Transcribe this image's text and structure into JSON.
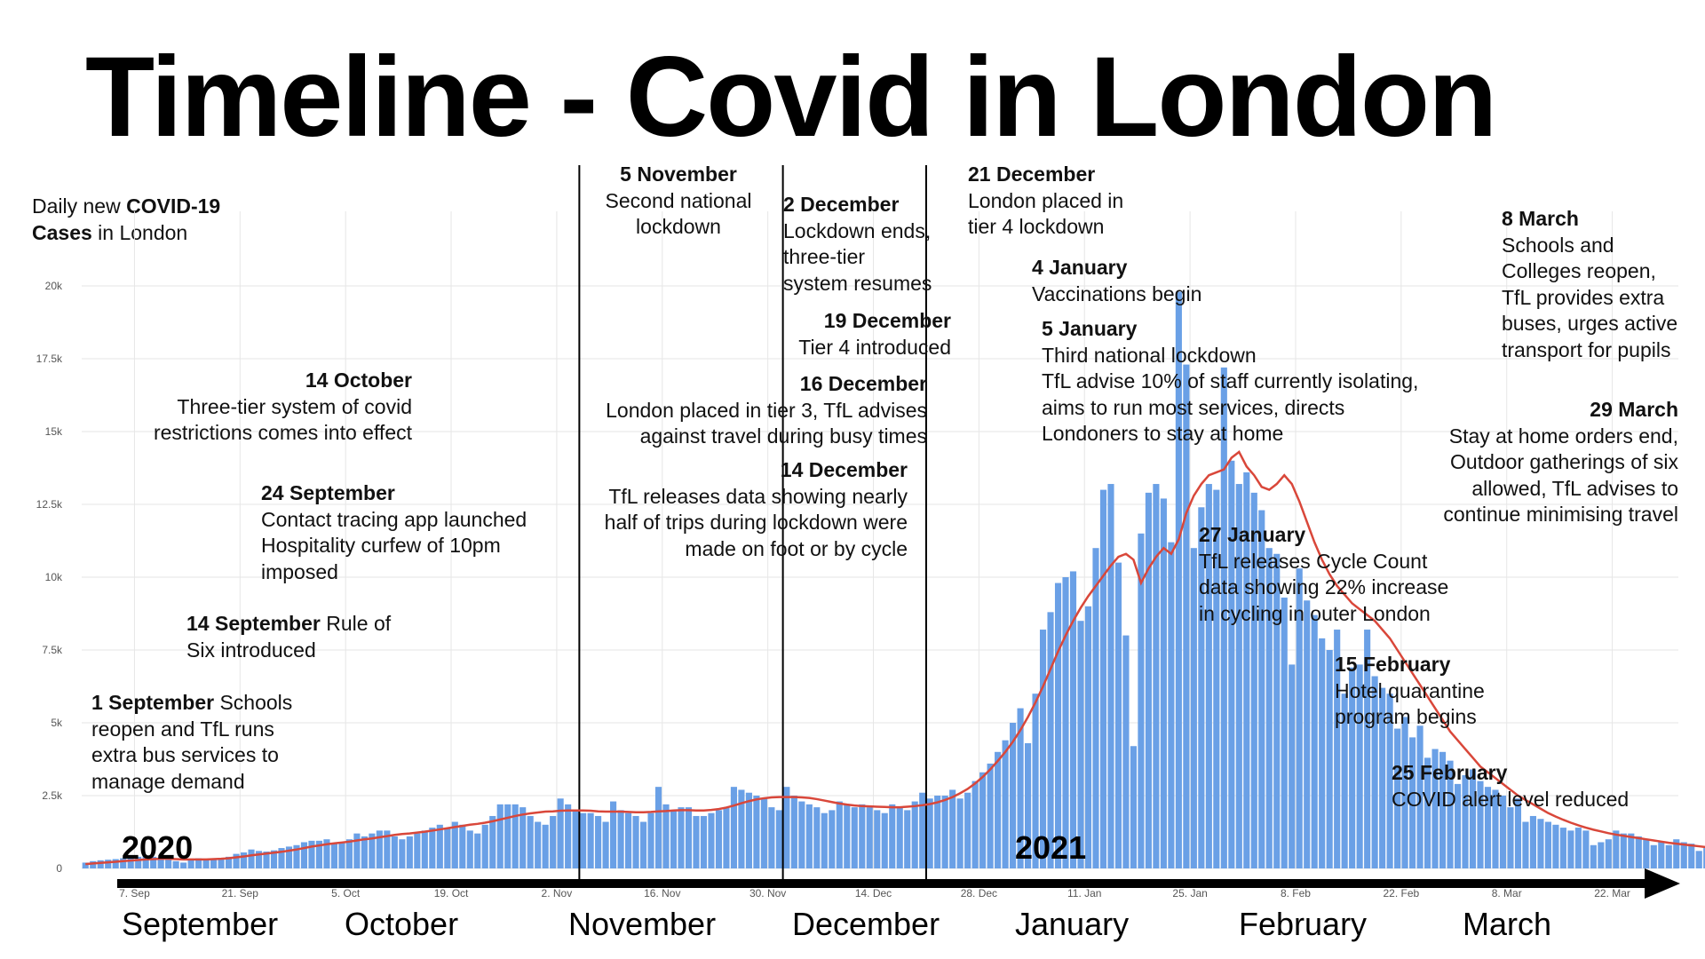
{
  "title": "Timeline - Covid in London",
  "y_title": {
    "prefix": "Daily new ",
    "bold1": "COVID-19",
    "bold2": "Cases",
    "suffix": " in London"
  },
  "years": [
    "2020",
    "2021"
  ],
  "months": [
    "September",
    "October",
    "November",
    "December",
    "January",
    "February",
    "March"
  ],
  "colors": {
    "bars": "#6aa0e6",
    "line": "#d9473a",
    "grid": "#e6e6e6",
    "text": "#111111"
  },
  "annotations": [
    {
      "id": "sep1",
      "date": "1 September",
      "lines": [
        "Schools",
        "reopen and TfL runs",
        "extra bus services to",
        "manage demand"
      ]
    },
    {
      "id": "sep14",
      "date": "14 September",
      "lines": [
        "Rule of",
        "Six introduced"
      ]
    },
    {
      "id": "sep24",
      "date": "24 September",
      "lines": [
        "Contact tracing app launched",
        "Hospitality curfew of 10pm",
        "imposed"
      ]
    },
    {
      "id": "oct14",
      "date": "14 October",
      "lines": [
        "Three-tier system of covid",
        "restrictions comes into effect"
      ]
    },
    {
      "id": "nov5",
      "date": "5 November",
      "lines": [
        "Second national",
        "lockdown"
      ]
    },
    {
      "id": "dec2",
      "date": "2 December",
      "lines": [
        "Lockdown ends,",
        "three-tier",
        "system resumes"
      ]
    },
    {
      "id": "dec19",
      "date": "19 December",
      "lines": [
        "Tier 4 introduced"
      ]
    },
    {
      "id": "dec16",
      "date": "16 December",
      "lines": [
        "London placed in tier 3, TfL advises",
        "against travel during busy times"
      ]
    },
    {
      "id": "dec14",
      "date": "14 December",
      "lines": [
        "TfL releases data showing nearly",
        "half of trips during lockdown were",
        "made on foot or by cycle"
      ]
    },
    {
      "id": "dec21",
      "date": "21 December",
      "lines": [
        "London placed in",
        "tier 4 lockdown"
      ]
    },
    {
      "id": "jan4",
      "date": "4 January",
      "lines": [
        "Vaccinations begin"
      ]
    },
    {
      "id": "jan5",
      "date": "5 January",
      "lines": [
        "Third national lockdown",
        "TfL advise 10% of staff currently isolating,",
        "aims to run most services, directs",
        "Londoners to stay at home"
      ]
    },
    {
      "id": "jan27",
      "date": "27 January",
      "lines": [
        "TfL releases Cycle Count",
        "data showing 22% increase",
        "in cycling in outer London"
      ]
    },
    {
      "id": "feb15",
      "date": "15 February",
      "lines": [
        "Hotel quarantine",
        "program begins"
      ]
    },
    {
      "id": "feb25",
      "date": "25 February",
      "lines": [
        "COVID alert level reduced"
      ]
    },
    {
      "id": "mar8",
      "date": "8 March",
      "lines": [
        "Schools and",
        "Colleges reopen,",
        "TfL provides extra",
        "buses, urges active",
        "transport for pupils"
      ]
    },
    {
      "id": "mar29",
      "date": "29 March",
      "lines": [
        "Stay at home orders end,",
        "Outdoor gatherings of six",
        "allowed, TfL advises to",
        "continue minimising travel"
      ]
    }
  ],
  "chart_data": {
    "type": "bar",
    "x_start": "2020-08-31",
    "x_end": "2021-03-31",
    "ylim": [
      0,
      22000
    ],
    "y_ticks": [
      0,
      2500,
      5000,
      7500,
      10000,
      12500,
      15000,
      17500,
      20000
    ],
    "y_tick_labels": [
      "0",
      "2.5k",
      "5k",
      "7.5k",
      "10k",
      "12.5k",
      "15k",
      "17.5k",
      "20k"
    ],
    "x_tick_labels": [
      "7. Sep",
      "21. Sep",
      "5. Oct",
      "19. Oct",
      "2. Nov",
      "16. Nov",
      "30. Nov",
      "14. Dec",
      "28. Dec",
      "11. Jan",
      "25. Jan",
      "8. Feb",
      "22. Feb",
      "8. Mar",
      "22. Mar"
    ],
    "x_tick_dates": [
      "2020-09-07",
      "2020-09-21",
      "2020-10-05",
      "2020-10-19",
      "2020-11-02",
      "2020-11-16",
      "2020-11-30",
      "2020-12-14",
      "2020-12-28",
      "2021-01-11",
      "2021-01-25",
      "2021-02-08",
      "2021-02-22",
      "2021-03-08",
      "2021-03-22"
    ],
    "event_lines": [
      "2020-11-05",
      "2020-12-02",
      "2020-12-21"
    ],
    "grid": true,
    "series": [
      {
        "type": "bar",
        "values": [
          200,
          250,
          280,
          300,
          320,
          350,
          380,
          400,
          420,
          400,
          380,
          300,
          250,
          200,
          300,
          350,
          320,
          300,
          350,
          400,
          500,
          550,
          650,
          600,
          580,
          620,
          700,
          750,
          800,
          900,
          950,
          950,
          1000,
          850,
          900,
          1000,
          1200,
          1100,
          1200,
          1300,
          1300,
          1100,
          1000,
          1100,
          1200,
          1300,
          1400,
          1500,
          1400,
          1600,
          1500,
          1300,
          1200,
          1500,
          1800,
          2200,
          2200,
          2200,
          2100,
          1800,
          1600,
          1500,
          1800,
          2400,
          2200,
          2000,
          1900,
          1900,
          1800,
          1600,
          2300,
          2000,
          1900,
          1800,
          1600,
          1900,
          2800,
          2200,
          2000,
          2100,
          2100,
          1800,
          1800,
          1900,
          2000,
          2100,
          2800,
          2700,
          2600,
          2500,
          2400,
          2100,
          2000,
          2800,
          2500,
          2300,
          2200,
          2100,
          1900,
          2000,
          2300,
          2200,
          2100,
          2200,
          2100,
          2000,
          1900,
          2200,
          2100,
          2000,
          2300,
          2600,
          2400,
          2500,
          2500,
          2700,
          2400,
          2600,
          3000,
          3300,
          3600,
          4000,
          4400,
          5000,
          5500,
          4300,
          6000,
          8200,
          8800,
          9800,
          10000,
          10200,
          8500,
          9000,
          11000,
          13000,
          13200,
          10500,
          8000,
          4200,
          11500,
          12900,
          13200,
          12700,
          11200,
          19800,
          17300,
          11000,
          12400,
          13200,
          13000,
          17200,
          14000,
          13200,
          13600,
          12900,
          12300,
          11000,
          10800,
          9300,
          7000,
          10300,
          9200,
          8700,
          7900,
          7500,
          8200,
          6000,
          6900,
          7000,
          8200,
          6600,
          6200,
          6000,
          4800,
          5200,
          4500,
          4900,
          3800,
          4100,
          4000,
          3700,
          2900,
          3200,
          3400,
          3000,
          2800,
          2700,
          2500,
          2100,
          2400,
          1600,
          1800,
          1700,
          1600,
          1500,
          1400,
          1300,
          1400,
          1300,
          800,
          900,
          1000,
          1300,
          1200,
          1200,
          1100,
          1000,
          800,
          900,
          800,
          1000,
          900,
          850,
          600,
          700,
          600,
          500,
          500,
          450,
          450,
          400,
          450,
          550,
          500,
          450,
          550,
          500,
          500,
          450,
          400,
          450,
          400,
          450,
          400,
          450,
          400,
          350,
          500,
          450,
          450,
          400,
          350,
          400,
          450,
          400,
          400,
          450,
          400,
          350,
          400,
          350,
          400,
          400,
          350,
          300,
          350,
          400,
          350,
          350,
          300,
          300
        ]
      },
      {
        "type": "line",
        "values": [
          150,
          170,
          190,
          210,
          230,
          250,
          270,
          290,
          310,
          320,
          330,
          330,
          320,
          310,
          310,
          310,
          310,
          320,
          330,
          350,
          380,
          410,
          450,
          480,
          510,
          540,
          570,
          610,
          650,
          700,
          750,
          790,
          830,
          860,
          890,
          920,
          960,
          1000,
          1030,
          1070,
          1110,
          1150,
          1180,
          1200,
          1230,
          1260,
          1300,
          1340,
          1380,
          1420,
          1460,
          1500,
          1530,
          1570,
          1620,
          1680,
          1740,
          1800,
          1850,
          1890,
          1920,
          1950,
          1960,
          1980,
          1990,
          1990,
          1990,
          1980,
          1960,
          1950,
          1950,
          1950,
          1940,
          1930,
          1930,
          1940,
          1960,
          1970,
          1990,
          2000,
          2000,
          1990,
          1990,
          2010,
          2040,
          2090,
          2160,
          2240,
          2310,
          2370,
          2410,
          2440,
          2450,
          2450,
          2450,
          2440,
          2420,
          2380,
          2330,
          2280,
          2230,
          2190,
          2160,
          2140,
          2130,
          2120,
          2110,
          2100,
          2100,
          2120,
          2140,
          2170,
          2210,
          2270,
          2350,
          2450,
          2580,
          2730,
          2920,
          3140,
          3400,
          3690,
          4000,
          4350,
          4750,
          5200,
          5700,
          6250,
          6850,
          7450,
          8000,
          8500,
          8950,
          9350,
          9700,
          10050,
          10400,
          10700,
          10800,
          10600,
          9800,
          10300,
          10700,
          11000,
          10800,
          11300,
          12200,
          12800,
          13200,
          13500,
          13600,
          13700,
          14100,
          14300,
          13800,
          13500,
          13100,
          13000,
          13200,
          13500,
          13200,
          12600,
          11900,
          11200,
          10600,
          10100,
          9700,
          9400,
          9100,
          8900,
          8700,
          8500,
          8200,
          7900,
          7500,
          7100,
          6700,
          6300,
          5900,
          5500,
          5100,
          4700,
          4400,
          4100,
          3800,
          3500,
          3300,
          3100,
          2900,
          2700,
          2500,
          2350,
          2200,
          2050,
          1900,
          1780,
          1670,
          1570,
          1480,
          1400,
          1330,
          1270,
          1210,
          1160,
          1120,
          1080,
          1040,
          1000,
          960,
          920,
          880,
          850,
          820,
          790,
          760,
          730,
          700,
          670,
          640,
          610,
          580,
          560,
          540,
          520,
          500,
          490,
          480,
          470,
          460,
          460,
          460,
          460,
          460,
          460,
          460,
          460,
          460,
          460,
          460,
          460,
          450,
          450,
          450,
          450,
          450,
          450,
          450,
          450,
          450,
          440,
          440,
          440,
          440,
          440,
          430,
          430,
          430,
          420,
          410,
          400,
          390,
          380
        ]
      }
    ]
  }
}
